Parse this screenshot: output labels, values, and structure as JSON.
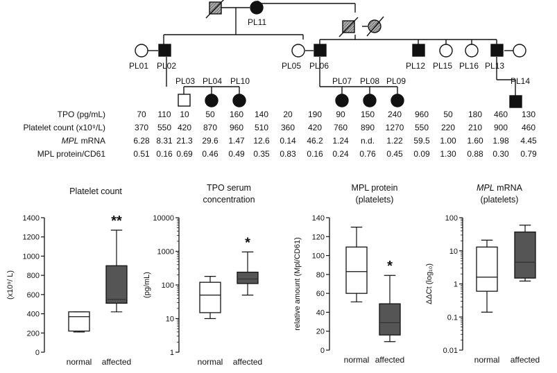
{
  "pedigree": {
    "generation1": [
      {
        "id": "",
        "sex": "male",
        "status": "deceased-shaded"
      },
      {
        "id": "PL11",
        "sex": "female",
        "status": "affected"
      },
      {
        "id": "",
        "sex": "male",
        "status": "deceased-shaded"
      },
      {
        "id": "",
        "sex": "female",
        "status": "deceased-shaded"
      }
    ],
    "individuals": [
      {
        "id": "PL01",
        "sex": "female",
        "status": "normal"
      },
      {
        "id": "PL02",
        "sex": "male",
        "status": "affected"
      },
      {
        "id": "PL03",
        "sex": "male",
        "status": "normal"
      },
      {
        "id": "PL04",
        "sex": "female",
        "status": "affected"
      },
      {
        "id": "PL10",
        "sex": "female",
        "status": "affected"
      },
      {
        "id": "PL05",
        "sex": "female",
        "status": "normal"
      },
      {
        "id": "PL06",
        "sex": "male",
        "status": "affected"
      },
      {
        "id": "PL07",
        "sex": "female",
        "status": "affected"
      },
      {
        "id": "PL08",
        "sex": "female",
        "status": "affected"
      },
      {
        "id": "PL09",
        "sex": "female",
        "status": "affected"
      },
      {
        "id": "PL12",
        "sex": "male",
        "status": "affected"
      },
      {
        "id": "PL15",
        "sex": "female",
        "status": "normal"
      },
      {
        "id": "PL16",
        "sex": "female",
        "status": "normal"
      },
      {
        "id": "PL13",
        "sex": "male",
        "status": "affected"
      },
      {
        "id": "PL14",
        "sex": "male",
        "status": "affected"
      }
    ]
  },
  "table": {
    "rows": [
      {
        "label_prefix": "",
        "label_italic": "",
        "label": "TPO (pg/mL)",
        "values": [
          "70",
          "110",
          "10",
          "50",
          "160",
          "140",
          "20",
          "190",
          "90",
          "150",
          "240",
          "960",
          "50",
          "180",
          "460",
          "130"
        ]
      },
      {
        "label_prefix": "",
        "label_italic": "",
        "label": "Platelet count (x10⁹/L)",
        "values": [
          "370",
          "550",
          "420",
          "870",
          "960",
          "510",
          "360",
          "420",
          "760",
          "890",
          "1270",
          "550",
          "220",
          "210",
          "900",
          "460"
        ]
      },
      {
        "label_prefix": "",
        "label_italic": "MPL",
        "label": " mRNA",
        "values": [
          "6.28",
          "8.31",
          "21.3",
          "29.6",
          "1.47",
          "12.6",
          "0.14",
          "46.2",
          "1.24",
          "n.d.",
          "1.22",
          "59.5",
          "1.00",
          "1.60",
          "1.98",
          "4.45"
        ]
      },
      {
        "label_prefix": "",
        "label_italic": "",
        "label": "MPL protein/CD61",
        "values": [
          "0.51",
          "0.16",
          "0.69",
          "0.46",
          "0.49",
          "0.35",
          "0.83",
          "0.16",
          "0.24",
          "0.76",
          "0.45",
          "0.09",
          "1.30",
          "0.88",
          "0.30",
          "0.79"
        ]
      }
    ]
  },
  "chart_data": [
    {
      "type": "box",
      "title": "Platelet count",
      "ylabel": "(x10⁹/ L)",
      "yscale": "linear",
      "ylim": [
        0,
        1400
      ],
      "yticks": [
        "0",
        "200",
        "400",
        "600",
        "800",
        "1000",
        "1200",
        "1400"
      ],
      "categories": [
        "normal",
        "affected"
      ],
      "boxes": [
        {
          "min": 210,
          "q1": 220,
          "median": 370,
          "q3": 420,
          "max": 420,
          "fill": "#ffffff"
        },
        {
          "min": 420,
          "q1": 510,
          "median": 550,
          "q3": 900,
          "max": 1270,
          "fill": "#555555"
        }
      ],
      "significance": "**"
    },
    {
      "type": "box",
      "title": "TPO serum",
      "title2": "concentration",
      "ylabel": "(pg/mL)",
      "yscale": "log",
      "ylim": [
        1,
        10000
      ],
      "yticks": [
        "1",
        "10",
        "100",
        "1000",
        "10000"
      ],
      "categories": [
        "normal",
        "affected"
      ],
      "boxes": [
        {
          "min": 10,
          "q1": 15,
          "median": 50,
          "q3": 120,
          "max": 180,
          "fill": "#ffffff"
        },
        {
          "min": 50,
          "q1": 110,
          "median": 150,
          "q3": 240,
          "max": 960,
          "fill": "#555555"
        }
      ],
      "significance": "*"
    },
    {
      "type": "box",
      "title": "MPL protein",
      "title2": "(platelets)",
      "ylabel": "relative amount (Mpl/CD61)",
      "yscale": "linear",
      "ylim": [
        0,
        140
      ],
      "yticks": [
        "0",
        "20",
        "40",
        "60",
        "80",
        "100",
        "120",
        "140"
      ],
      "categories": [
        "normal",
        "affected"
      ],
      "boxes": [
        {
          "min": 51,
          "q1": 60,
          "median": 83,
          "q3": 109,
          "max": 130,
          "fill": "#ffffff"
        },
        {
          "min": 9,
          "q1": 16,
          "median": 29,
          "q3": 49,
          "max": 79,
          "fill": "#555555"
        }
      ],
      "significance": "*"
    },
    {
      "type": "box",
      "title_italic": "MPL",
      "title": " mRNA",
      "title2": "(platelets)",
      "ylabel": "ΔΔCt (log₁₀)",
      "yscale": "log",
      "ylim": [
        0.01,
        100
      ],
      "yticks": [
        "0.01",
        "0.1",
        "1",
        "10",
        "100"
      ],
      "categories": [
        "normal",
        "affected"
      ],
      "boxes": [
        {
          "min": 0.14,
          "q1": 0.6,
          "median": 1.6,
          "q3": 13,
          "max": 21,
          "fill": "#ffffff"
        },
        {
          "min": 1.22,
          "q1": 1.5,
          "median": 4.5,
          "q3": 37,
          "max": 59.5,
          "fill": "#555555"
        }
      ],
      "significance": ""
    }
  ]
}
